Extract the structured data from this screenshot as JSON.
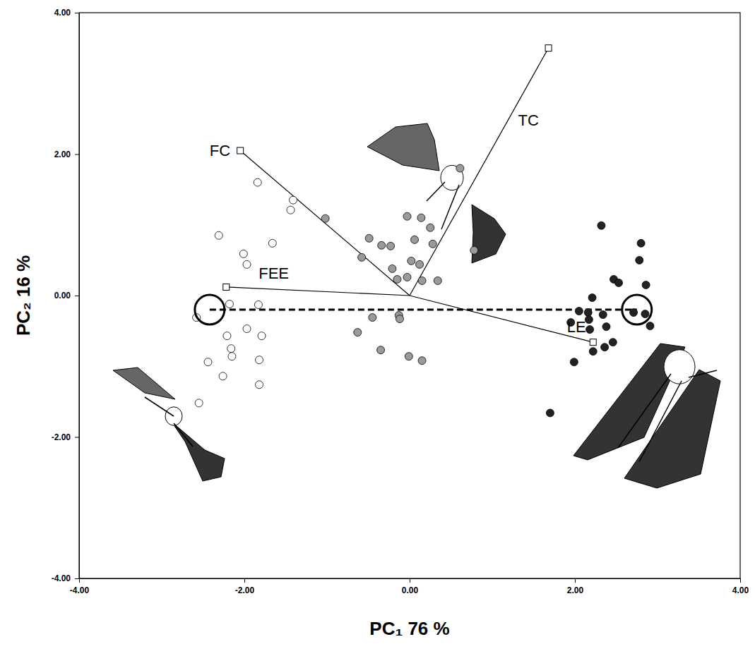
{
  "chart_data": {
    "type": "scatter",
    "x_label": "PC₁ 76 %",
    "y_label": "PC₂ 16 %",
    "xlim": [
      -4,
      4
    ],
    "ylim": [
      -4,
      4
    ],
    "xticks": [
      {
        "value": -4,
        "label": "-4.00"
      },
      {
        "value": -2,
        "label": "-2.00"
      },
      {
        "value": 0,
        "label": "0.00"
      },
      {
        "value": 2,
        "label": "2.00"
      },
      {
        "value": 4,
        "label": "4.00"
      }
    ],
    "yticks": [
      {
        "value": -4,
        "label": "-4.00"
      },
      {
        "value": -2,
        "label": "-2.00"
      },
      {
        "value": 0,
        "label": "0.00"
      },
      {
        "value": 2,
        "label": "2.00"
      },
      {
        "value": 4,
        "label": "4.00"
      }
    ],
    "series": [
      {
        "color": "#ffffff",
        "marker": "circle",
        "x": [
          -1.84,
          -1.41,
          -1.44,
          -1.66,
          -2.31,
          -2.01,
          -1.97,
          -2.18,
          -1.83,
          -2.58,
          -2.21,
          -1.97,
          -1.79,
          -2.16,
          -2.15,
          -2.44,
          -1.82,
          -2.26,
          -1.82,
          -2.55
        ],
        "y": [
          1.6,
          1.35,
          1.21,
          0.74,
          0.85,
          0.59,
          0.44,
          -0.12,
          -0.13,
          -0.31,
          -0.57,
          -0.47,
          -0.57,
          -0.75,
          -0.86,
          -0.94,
          -0.91,
          -1.14,
          -1.26,
          -1.52
        ]
      },
      {
        "color": "#9a9a9a",
        "marker": "circle",
        "x": [
          -1.02,
          0.61,
          -0.03,
          0.14,
          0.25,
          -0.49,
          -0.34,
          -0.23,
          0.06,
          0.28,
          -0.58,
          -0.21,
          0.02,
          0.12,
          -0.15,
          -0.03,
          0.15,
          0.34,
          0.78,
          -0.13,
          -0.12,
          -0.45,
          -0.63,
          -0.35,
          -0.01,
          0.15
        ],
        "y": [
          1.09,
          1.8,
          1.12,
          1.1,
          0.96,
          0.81,
          0.71,
          0.7,
          0.79,
          0.73,
          0.54,
          0.38,
          0.49,
          0.44,
          0.23,
          0.26,
          0.21,
          0.21,
          0.64,
          -0.28,
          -0.33,
          -0.31,
          -0.52,
          -0.77,
          -0.86,
          -0.92
        ]
      },
      {
        "color": "#222222",
        "marker": "circle",
        "x": [
          2.32,
          2.8,
          2.78,
          2.47,
          2.53,
          2.86,
          2.21,
          2.05,
          2.16,
          2.34,
          2.71,
          2.85,
          2.91,
          1.95,
          2.17,
          2.18,
          2.38,
          2.46,
          2.36,
          1.99,
          2.22,
          1.7
        ],
        "y": [
          0.99,
          0.74,
          0.5,
          0.23,
          0.18,
          0.15,
          -0.03,
          -0.22,
          -0.24,
          -0.27,
          -0.24,
          -0.26,
          -0.43,
          -0.38,
          -0.34,
          -0.48,
          -0.44,
          -0.66,
          -0.73,
          -0.94,
          -0.79,
          -1.66
        ]
      }
    ],
    "vectors": [
      {
        "label": "FC",
        "x": -2.05,
        "y": 2.05
      },
      {
        "label": "TC",
        "x": 1.68,
        "y": 3.5
      },
      {
        "label": "FEE",
        "x": -2.22,
        "y": 0.12
      },
      {
        "label": "LE",
        "x": 2.22,
        "y": -0.66
      }
    ],
    "centroids": {
      "x": [
        -2.42,
        2.75
      ],
      "y": [
        -0.2,
        -0.2
      ],
      "line_style": "dashed"
    }
  }
}
